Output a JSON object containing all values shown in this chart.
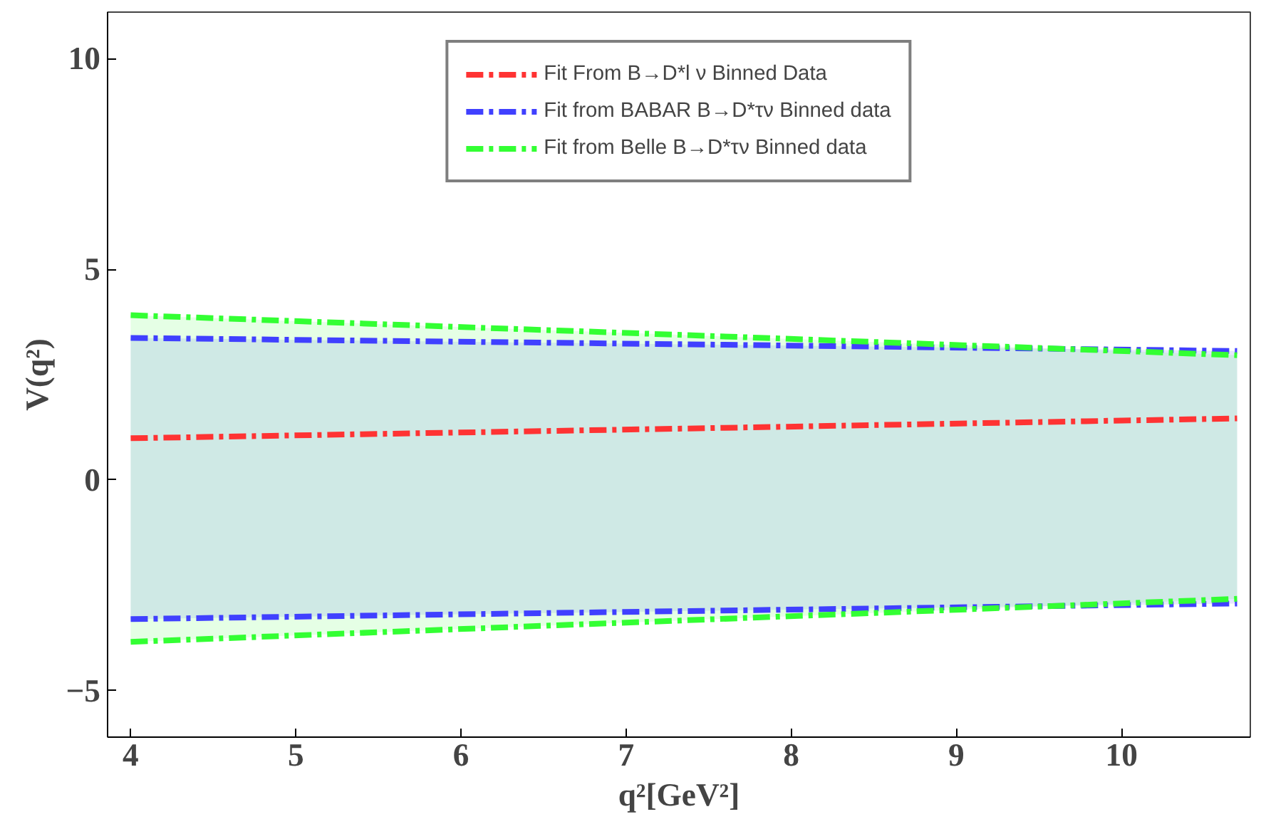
{
  "chart_data": {
    "type": "line",
    "xlabel": "q²[GeV²]",
    "ylabel": "V(q²)",
    "xlim": [
      3.86,
      10.78
    ],
    "ylim": [
      -6.1,
      11.1
    ],
    "xticks": [
      4,
      5,
      6,
      7,
      8,
      9,
      10
    ],
    "yticks": [
      -5,
      0,
      5,
      10
    ],
    "grid": false,
    "legend": "top",
    "line_style": "dashed",
    "x": [
      4,
      7.35,
      10.7
    ],
    "series": [
      {
        "name": "Fit From B→D*l ν Binned Data",
        "color": "#ff3333",
        "values": [
          0.99,
          1.22,
          1.46
        ]
      },
      {
        "name": "Fit from BABAR B→D*τν Binned data",
        "color": "#4040ff",
        "values": [
          3.37,
          3.22,
          3.06
        ],
        "lower": [
          -3.3,
          -3.11,
          -2.93
        ],
        "upper": [
          3.37,
          3.22,
          3.06
        ]
      },
      {
        "name": "Fit from Belle B→D*τν Binned data",
        "color": "#33ff33",
        "values": [
          3.91,
          3.44,
          2.96
        ],
        "lower": [
          -3.84,
          -3.33,
          -2.82
        ],
        "upper": [
          3.91,
          3.44,
          2.96
        ]
      },
      {
        "color": "#4040ff",
        "values": [
          -3.3,
          -3.11,
          -2.93
        ]
      },
      {
        "color": "#33ff33",
        "values": [
          -3.84,
          -3.33,
          -2.82
        ]
      }
    ]
  }
}
